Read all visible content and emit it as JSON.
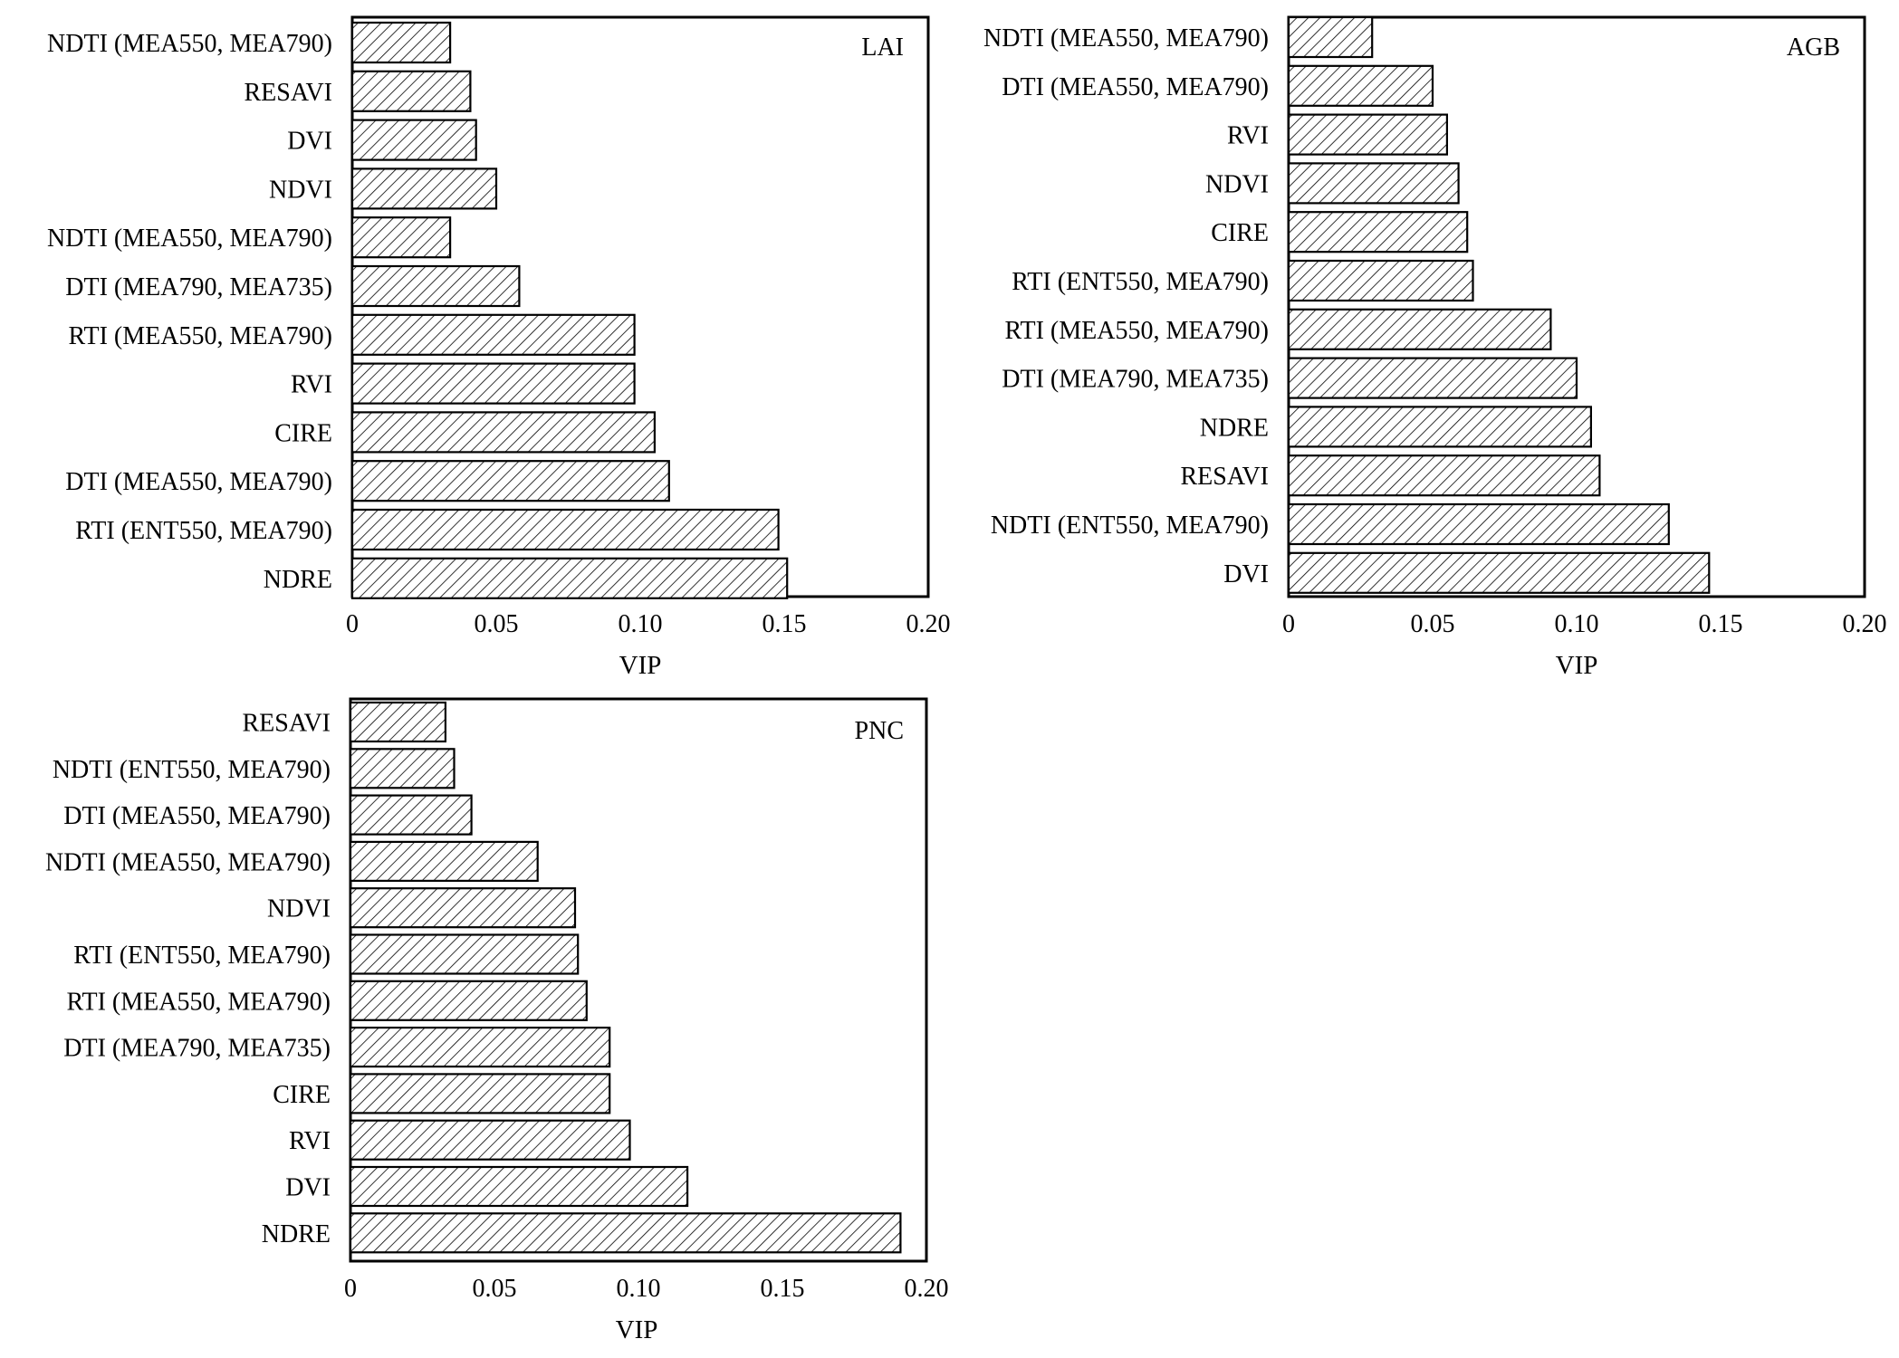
{
  "chart_data": [
    {
      "type": "bar",
      "orientation": "horizontal",
      "panel_label": "LAI",
      "xlabel": "VIP",
      "xlim": [
        0,
        0.2
      ],
      "xticks": [
        "0",
        "0.05",
        "0.10",
        "0.15",
        "0.20"
      ],
      "categories": [
        "NDTI (MEA550, MEA790)",
        "RESAVI",
        "DVI",
        "NDVI",
        "NDTI (MEA550, MEA790)",
        "DTI (MEA790, MEA735)",
        "RTI (MEA550, MEA790)",
        "RVI",
        "CIRE",
        "DTI (MEA550, MEA790)",
        "RTI (ENT550, MEA790)",
        "NDRE"
      ],
      "values": [
        0.034,
        0.041,
        0.043,
        0.05,
        0.034,
        0.058,
        0.098,
        0.098,
        0.105,
        0.11,
        0.148,
        0.151
      ],
      "bar_fill": "diagonal-hatch",
      "grid": false
    },
    {
      "type": "bar",
      "orientation": "horizontal",
      "panel_label": "AGB",
      "xlabel": "VIP",
      "xlim": [
        0,
        0.2
      ],
      "xticks": [
        "0",
        "0.05",
        "0.10",
        "0.15",
        "0.20"
      ],
      "categories": [
        "NDTI (MEA550, MEA790)",
        "DTI (MEA550, MEA790)",
        "RVI",
        "NDVI",
        "CIRE",
        "RTI (ENT550, MEA790)",
        "RTI (MEA550, MEA790)",
        "DTI (MEA790, MEA735)",
        "NDRE",
        "RESAVI",
        "NDTI (ENT550, MEA790)",
        "DVI"
      ],
      "values": [
        0.029,
        0.05,
        0.055,
        0.059,
        0.062,
        0.064,
        0.091,
        0.1,
        0.105,
        0.108,
        0.132,
        0.146
      ],
      "bar_fill": "diagonal-hatch",
      "grid": false
    },
    {
      "type": "bar",
      "orientation": "horizontal",
      "panel_label": "PNC",
      "xlabel": "VIP",
      "xlim": [
        0,
        0.2
      ],
      "xticks": [
        "0",
        "0.05",
        "0.10",
        "0.15",
        "0.20"
      ],
      "categories": [
        "RESAVI",
        "NDTI (ENT550, MEA790)",
        "DTI (MEA550, MEA790)",
        "NDTI (MEA550, MEA790)",
        "NDVI",
        "RTI (ENT550, MEA790)",
        "RTI (MEA550, MEA790)",
        "DTI (MEA790, MEA735)",
        "CIRE",
        "RVI",
        "DVI",
        "NDRE"
      ],
      "values": [
        0.033,
        0.036,
        0.042,
        0.065,
        0.078,
        0.079,
        0.082,
        0.09,
        0.09,
        0.097,
        0.117,
        0.191
      ],
      "bar_fill": "diagonal-hatch",
      "grid": false
    }
  ]
}
